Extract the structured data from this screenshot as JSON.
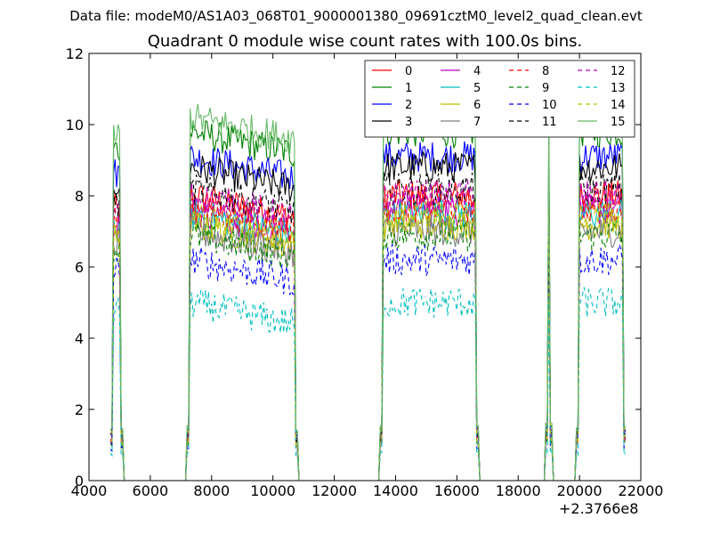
{
  "figure": {
    "suptitle": "Data file: modeM0/AS1A03_068T01_9000001380_09691cztM0_level2_quad_clean.evt",
    "x_offset_label": "+2.3766e8"
  },
  "chart_data": {
    "type": "line",
    "title": "Quadrant 0 module wise count rates with 100.0s bins.",
    "xlabel": "",
    "ylabel": "",
    "xlim": [
      4000,
      22000
    ],
    "ylim": [
      0,
      12
    ],
    "x_ticks": [
      4000,
      6000,
      8000,
      10000,
      12000,
      14000,
      16000,
      18000,
      20000,
      22000
    ],
    "y_ticks": [
      0,
      2,
      4,
      6,
      8,
      10,
      12
    ],
    "x_tick_labels": [
      "4000",
      "6000",
      "8000",
      "10000",
      "12000",
      "14000",
      "16000",
      "18000",
      "20000",
      "22000"
    ],
    "y_tick_labels": [
      "0",
      "2",
      "4",
      "6",
      "8",
      "10",
      "12"
    ],
    "x_offset": 237660000,
    "bin_size_s": 100,
    "segments": [
      {
        "start": 4800,
        "end": 5000
      },
      {
        "start": 7300,
        "end": 10700
      },
      {
        "start": 13600,
        "end": 16600
      },
      {
        "start": 19000,
        "end": 19000
      },
      {
        "start": 20000,
        "end": 21400
      }
    ],
    "gap_value": 0,
    "legend": {
      "location": "upper right",
      "ncol": 4
    },
    "series": [
      {
        "name": "0",
        "color": "#ff0000",
        "dash": "solid",
        "level": 8.0
      },
      {
        "name": "1",
        "color": "#008000",
        "dash": "solid",
        "level": 9.8
      },
      {
        "name": "2",
        "color": "#0000ff",
        "dash": "solid",
        "level": 9.1
      },
      {
        "name": "3",
        "color": "#000000",
        "dash": "solid",
        "level": 8.8
      },
      {
        "name": "4",
        "color": "#bf00bf",
        "dash": "solid",
        "level": 7.6
      },
      {
        "name": "5",
        "color": "#00bfbf",
        "dash": "solid",
        "level": 7.5
      },
      {
        "name": "6",
        "color": "#bfbf00",
        "dash": "solid",
        "level": 7.2
      },
      {
        "name": "7",
        "color": "#808080",
        "dash": "solid",
        "level": 7.0
      },
      {
        "name": "8",
        "color": "#ff0000",
        "dash": "dashed",
        "level": 7.7
      },
      {
        "name": "9",
        "color": "#008000",
        "dash": "dashed",
        "level": 6.9
      },
      {
        "name": "10",
        "color": "#0000ff",
        "dash": "dashed",
        "level": 6.2
      },
      {
        "name": "11",
        "color": "#000000",
        "dash": "dashed",
        "level": 8.2
      },
      {
        "name": "12",
        "color": "#bf00bf",
        "dash": "dashed",
        "level": 8.0
      },
      {
        "name": "13",
        "color": "#00bfbf",
        "dash": "dashed",
        "level": 5.0
      },
      {
        "name": "14",
        "color": "#bfbf00",
        "dash": "dashed",
        "level": 7.4
      },
      {
        "name": "15",
        "color": "#66bb66",
        "dash": "solid",
        "level": 10.2
      }
    ]
  }
}
